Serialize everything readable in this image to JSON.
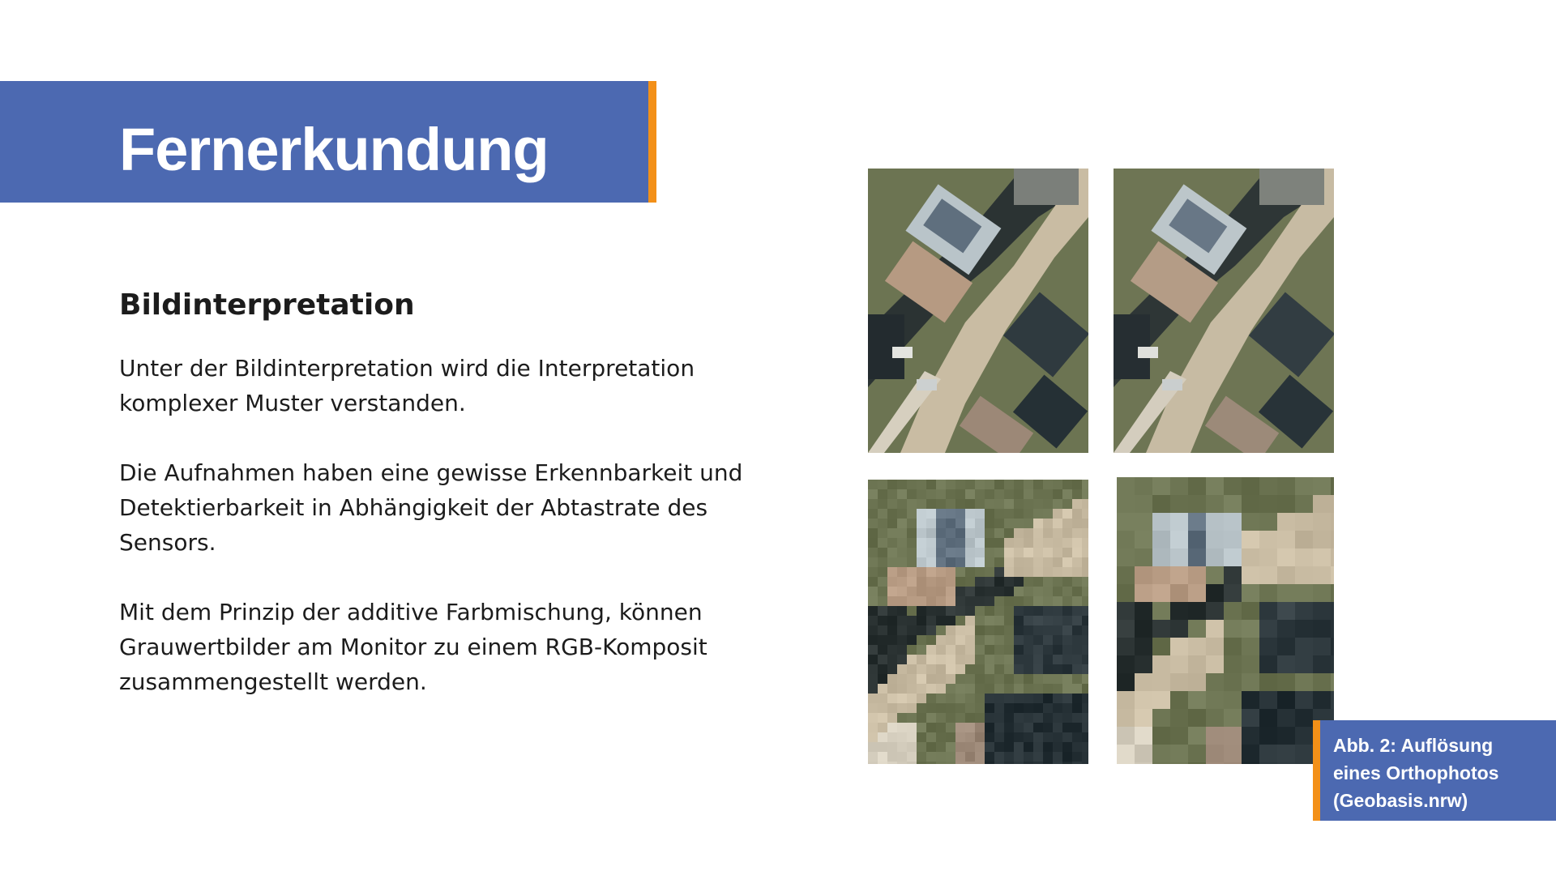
{
  "slide": {
    "title": "Fernerkundung",
    "subtitle": "Bildinterpretation",
    "paragraphs": [
      "Unter der Bildinterpretation wird die Interpretation komplexer Muster verstanden.",
      "Die Aufnahmen haben eine gewisse Erkennbarkeit und Detektierbarkeit in Abhängigkeit der Abtastrate des Sensors.",
      "Mit dem Prinzip der additive Farbmischung, können Grauwertbilder am Monitor zu einem RGB-Komposit zusammengestellt werden."
    ],
    "caption": "Abb. 2: Auflösung eines Orthophotos (Geobasis.nrw)"
  },
  "figure": {
    "images": [
      {
        "name": "orthophoto-full-resolution"
      },
      {
        "name": "orthophoto-reduced-resolution-1"
      },
      {
        "name": "orthophoto-reduced-resolution-2"
      },
      {
        "name": "orthophoto-reduced-resolution-3"
      }
    ]
  },
  "colors": {
    "accent_blue": "#4c69b1",
    "accent_orange": "#f39018",
    "text": "#1c1c1c"
  }
}
